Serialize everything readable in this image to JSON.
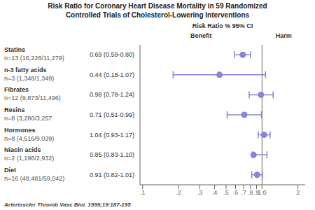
{
  "chart_data": {
    "type": "forest",
    "title": [
      "Risk Ratio for Coronary Heart Disease Mortality in 59 Randomized",
      "Controlled Trials of Cholesterol-Lowering Interventions"
    ],
    "header": "Risk Ratio % 95% CI",
    "annotations": [
      "Benefit",
      "Harm"
    ],
    "citation": "Arterioscler Thromb Vasc Biol. 1999;19:187-195",
    "categories": [
      "Statins",
      "n-3 fatty acids",
      "Fibrates",
      "Resins",
      "Hormones",
      "Niacin acids",
      "Diet"
    ],
    "category_notes": [
      "n=13 (16,228/11,279)",
      "n=3 (1,348/1,349)",
      "n=12 (9,873/11,496)",
      "n=8 (3,280/3,257",
      "n=8 (4,516/9,039)",
      "n=2 (1,196/2,932)",
      "n=16 (48,481/59,042)"
    ],
    "values": [
      0.69,
      0.44,
      0.98,
      0.71,
      1.04,
      0.85,
      0.91
    ],
    "ci_low": [
      0.59,
      0.18,
      0.78,
      0.51,
      0.93,
      0.83,
      0.82
    ],
    "ci_high": [
      0.8,
      1.07,
      1.24,
      0.99,
      1.17,
      1.1,
      1.01
    ],
    "value_labels": [
      "0.69 (0.59-0.80)",
      "0.44 (0.18-1.07)",
      "0.98 (0.78-1.24)",
      "0.71 (0.51-0.99)",
      "1.04 (0.93-1.17)",
      "0.85 (0.83-1.10)",
      "0.91 (0.82-1.01)"
    ],
    "reference_line": 1.0,
    "xlim": [
      0.095,
      2.3
    ],
    "xticks": [
      {
        "value": 0.1,
        "label": ".1"
      },
      {
        "value": 0.2,
        "label": ".2"
      },
      {
        "value": 0.3,
        "label": ".3"
      },
      {
        "value": 0.4,
        "label": ".4"
      },
      {
        "value": 0.5,
        "label": ".5"
      },
      {
        "value": 0.6,
        "label": ".6"
      },
      {
        "value": 0.7,
        "label": ".7"
      },
      {
        "value": 0.8,
        "label": ".8"
      },
      {
        "value": 0.9,
        "label": ".9"
      },
      {
        "value": 1.0,
        "label": "1.0"
      },
      2
    ],
    "log": "x",
    "grid": false
  }
}
